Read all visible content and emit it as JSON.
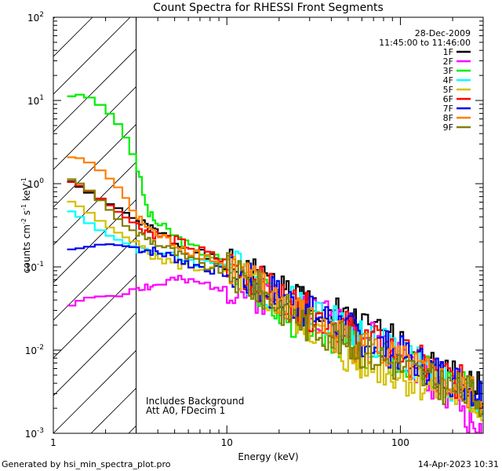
{
  "chart_data": {
    "type": "line",
    "title": "Count Spectra for RHESSI Front Segments",
    "date": "28-Dec-2009",
    "time_range": "11:45:00 to 11:46:00",
    "xlabel": "Energy (keV)",
    "ylabel_parts": [
      "counts cm",
      "-2",
      " s",
      "-1",
      " keV",
      "-1"
    ],
    "x_scale": "log",
    "y_scale": "log",
    "xlim": [
      1,
      300
    ],
    "ylim": [
      0.001,
      100
    ],
    "x_tick_labels": [
      {
        "v": 1,
        "label": "1"
      },
      {
        "v": 10,
        "label": "10"
      },
      {
        "v": 100,
        "label": "100"
      }
    ],
    "y_tick_labels": [
      {
        "v": 0.001,
        "base": "10",
        "exp": "-3"
      },
      {
        "v": 0.01,
        "base": "10",
        "exp": "-2"
      },
      {
        "v": 0.1,
        "base": "10",
        "exp": "-1"
      },
      {
        "v": 1,
        "base": "10",
        "exp": "0"
      },
      {
        "v": 10,
        "base": "10",
        "exp": "1"
      },
      {
        "v": 100,
        "base": "10",
        "exp": "2"
      }
    ],
    "hatched_region_x": [
      1,
      3
    ],
    "annotations": [
      "Includes Background",
      "Att A0, FDecim 1"
    ],
    "footer_left": "Generated by hsi_min_spectra_plot.pro",
    "footer_right": "14-Apr-2023 10:31",
    "series": [
      {
        "name": "1F",
        "color": "#000000",
        "x": [
          1.2,
          1.5,
          2,
          2.5,
          3,
          3.5,
          4,
          5,
          6,
          8,
          10,
          13,
          16,
          20,
          25,
          30,
          40,
          50,
          60,
          80,
          100,
          130,
          160,
          200,
          250,
          300
        ],
        "values": [
          1.15,
          0.85,
          0.6,
          0.48,
          0.36,
          0.3,
          0.26,
          0.2,
          0.16,
          0.13,
          0.1,
          0.085,
          0.07,
          0.055,
          0.045,
          0.035,
          0.027,
          0.022,
          0.018,
          0.014,
          0.011,
          0.008,
          0.006,
          0.005,
          0.004,
          0.003
        ]
      },
      {
        "name": "2F",
        "color": "#ff00ff",
        "x": [
          1.2,
          1.5,
          2,
          2.5,
          3,
          3.5,
          4,
          5,
          6,
          8,
          10,
          13,
          16,
          20,
          25,
          30,
          40,
          50,
          60,
          80,
          100,
          130,
          160,
          200,
          250,
          300
        ],
        "values": [
          0.032,
          0.042,
          0.045,
          0.044,
          0.058,
          0.058,
          0.06,
          0.07,
          0.065,
          0.06,
          0.058,
          0.05,
          0.045,
          0.04,
          0.035,
          0.03,
          0.024,
          0.019,
          0.015,
          0.011,
          0.008,
          0.006,
          0.004,
          0.003,
          0.0015,
          0.001
        ]
      },
      {
        "name": "3F",
        "color": "#00ee00",
        "x": [
          1.2,
          1.5,
          2,
          2.5,
          3,
          3.5,
          4,
          5,
          6,
          8,
          10,
          13,
          16,
          20,
          25,
          30,
          40,
          50,
          60,
          80,
          100,
          130,
          160,
          200,
          250,
          300
        ],
        "values": [
          11,
          12,
          8,
          4.5,
          1.8,
          0.45,
          0.33,
          0.24,
          0.18,
          0.14,
          0.11,
          0.08,
          0.05,
          0.03,
          0.022,
          0.02,
          0.015,
          0.012,
          0.01,
          0.008,
          0.007,
          0.006,
          0.005,
          0.004,
          0.003,
          0.0025
        ]
      },
      {
        "name": "4F",
        "color": "#00ffff",
        "x": [
          1.2,
          1.5,
          2,
          2.5,
          3,
          3.5,
          4,
          5,
          6,
          8,
          10,
          13,
          16,
          20,
          25,
          30,
          40,
          50,
          60,
          80,
          100,
          130,
          160,
          200,
          250,
          300
        ],
        "values": [
          0.5,
          0.37,
          0.25,
          0.2,
          0.17,
          0.16,
          0.15,
          0.13,
          0.12,
          0.11,
          0.12,
          0.08,
          0.06,
          0.045,
          0.035,
          0.03,
          0.022,
          0.018,
          0.015,
          0.011,
          0.009,
          0.007,
          0.005,
          0.004,
          0.003,
          0.0025
        ]
      },
      {
        "name": "5F",
        "color": "#d4c000",
        "x": [
          1.2,
          1.5,
          2,
          2.5,
          3,
          3.5,
          4,
          5,
          6,
          8,
          10,
          13,
          16,
          20,
          25,
          30,
          40,
          50,
          60,
          80,
          100,
          130,
          160,
          200,
          250,
          300
        ],
        "values": [
          0.65,
          0.5,
          0.32,
          0.24,
          0.19,
          0.15,
          0.13,
          0.11,
          0.1,
          0.095,
          0.09,
          0.07,
          0.05,
          0.035,
          0.025,
          0.02,
          0.012,
          0.008,
          0.007,
          0.006,
          0.005,
          0.004,
          0.0035,
          0.003,
          0.0025,
          0.002
        ]
      },
      {
        "name": "6F",
        "color": "#ff0000",
        "x": [
          1.2,
          1.5,
          2,
          2.5,
          3,
          3.5,
          4,
          5,
          6,
          8,
          10,
          13,
          16,
          20,
          25,
          30,
          40,
          50,
          60,
          80,
          100,
          130,
          160,
          200,
          250,
          300
        ],
        "values": [
          1.1,
          0.9,
          0.6,
          0.42,
          0.32,
          0.27,
          0.24,
          0.21,
          0.18,
          0.14,
          0.11,
          0.08,
          0.06,
          0.045,
          0.035,
          0.028,
          0.022,
          0.018,
          0.014,
          0.011,
          0.009,
          0.007,
          0.0055,
          0.0045,
          0.0035,
          0.003
        ]
      },
      {
        "name": "7F",
        "color": "#0000ee",
        "x": [
          1.2,
          1.5,
          2,
          2.5,
          3,
          3.5,
          4,
          5,
          6,
          8,
          10,
          13,
          16,
          20,
          25,
          30,
          40,
          50,
          60,
          80,
          100,
          130,
          160,
          200,
          250,
          300
        ],
        "values": [
          0.16,
          0.17,
          0.19,
          0.18,
          0.17,
          0.16,
          0.15,
          0.13,
          0.11,
          0.095,
          0.085,
          0.07,
          0.055,
          0.045,
          0.035,
          0.028,
          0.022,
          0.018,
          0.014,
          0.011,
          0.009,
          0.007,
          0.0055,
          0.0045,
          0.0035,
          0.003
        ]
      },
      {
        "name": "8F",
        "color": "#ff8000",
        "x": [
          1.2,
          1.5,
          2,
          2.5,
          3,
          3.5,
          4,
          5,
          6,
          8,
          10,
          13,
          16,
          20,
          25,
          30,
          40,
          50,
          60,
          80,
          100,
          130,
          160,
          200,
          250,
          300
        ],
        "values": [
          2.1,
          2.0,
          1.3,
          0.8,
          0.4,
          0.3,
          0.24,
          0.19,
          0.16,
          0.13,
          0.1,
          0.075,
          0.055,
          0.04,
          0.03,
          0.022,
          0.016,
          0.013,
          0.011,
          0.009,
          0.007,
          0.0055,
          0.0045,
          0.0035,
          0.003,
          0.0025
        ]
      },
      {
        "name": "9F",
        "color": "#808000",
        "x": [
          1.2,
          1.5,
          2,
          2.5,
          3,
          3.5,
          4,
          5,
          6,
          8,
          10,
          13,
          16,
          20,
          25,
          30,
          40,
          50,
          60,
          80,
          100,
          130,
          160,
          200,
          250,
          300
        ],
        "values": [
          1.2,
          0.95,
          0.55,
          0.33,
          0.26,
          0.22,
          0.19,
          0.15,
          0.12,
          0.1,
          0.09,
          0.065,
          0.05,
          0.035,
          0.025,
          0.02,
          0.016,
          0.012,
          0.01,
          0.008,
          0.0065,
          0.005,
          0.004,
          0.0035,
          0.003,
          0.0025
        ]
      }
    ]
  }
}
